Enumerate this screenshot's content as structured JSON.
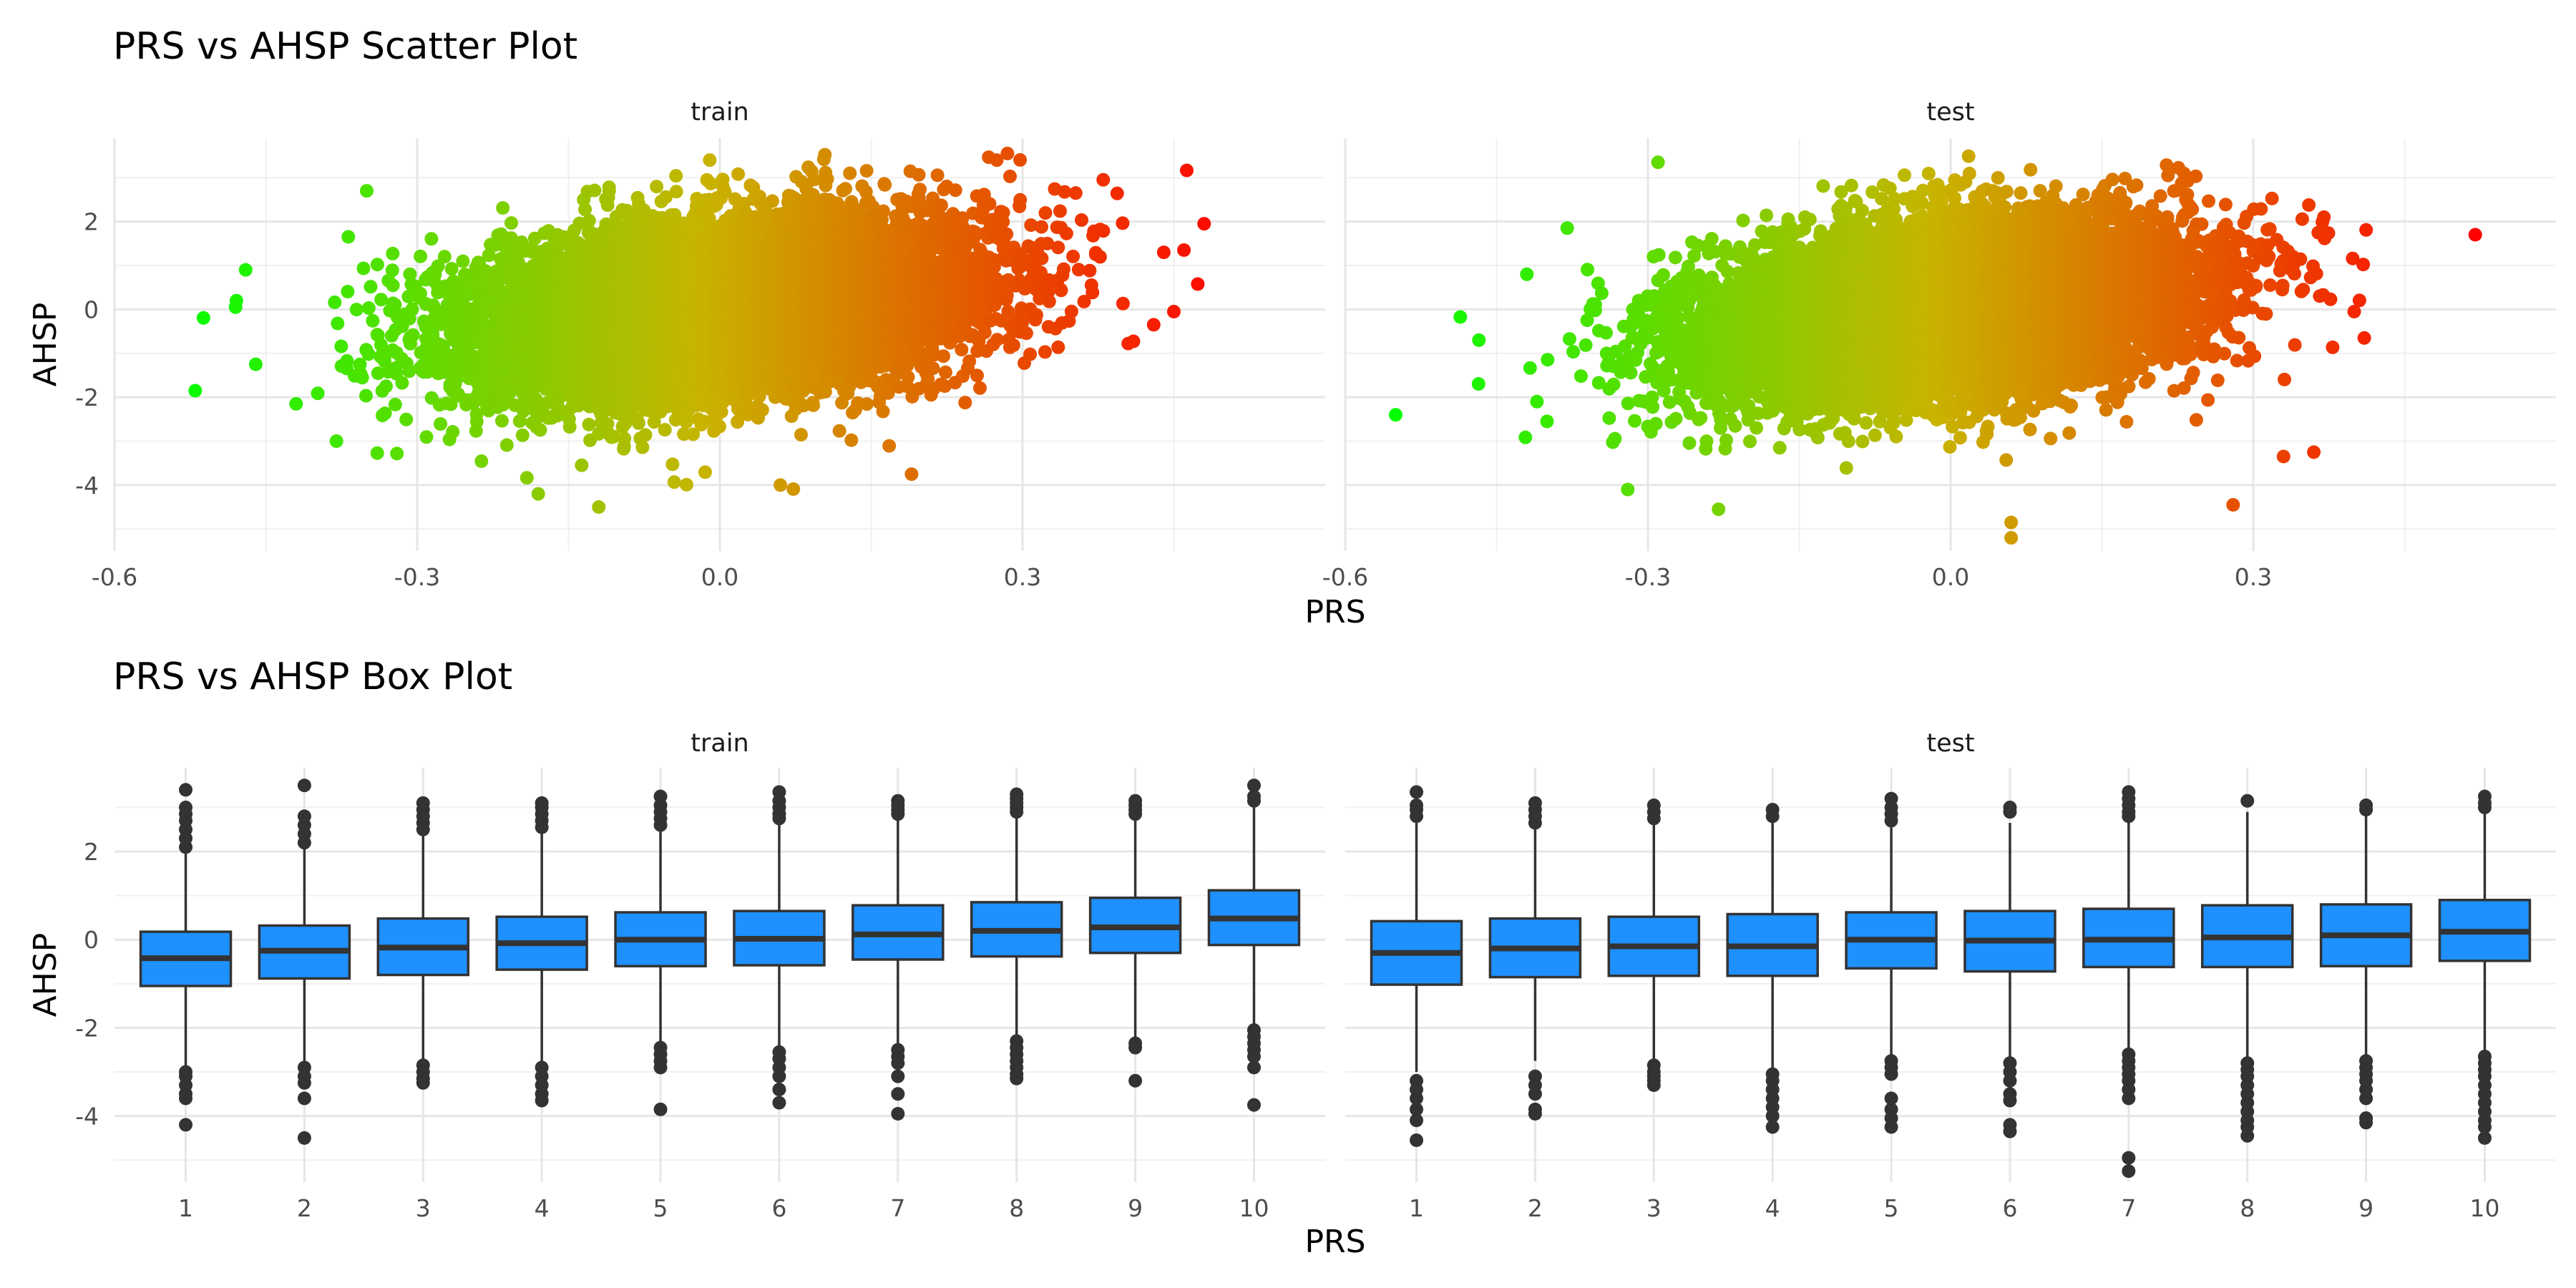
{
  "chart_data": [
    {
      "type": "scatter",
      "title": "PRS vs AHSP Scatter Plot",
      "xlabel": "PRS",
      "ylabel": "AHSP",
      "xlim": [
        -0.6,
        0.6
      ],
      "ylim": [
        -5.5,
        3.9
      ],
      "xticks": [
        -0.6,
        -0.3,
        0.0,
        0.3
      ],
      "xtick_labels": [
        "-0.6",
        "-0.3",
        "0.0",
        "0.3"
      ],
      "yticks": [
        -4,
        -2,
        0,
        2
      ],
      "ytick_labels": [
        "-4",
        "-2",
        "0",
        "2"
      ],
      "grid": true,
      "color_scale": {
        "low": "#00ff00",
        "mid": "#c8b400",
        "high": "#ff0000"
      },
      "panels": [
        {
          "name": "train",
          "approx_distribution": {
            "x_mean": 0.0,
            "x_sd": 0.12,
            "y_mean": 0.0,
            "y_sd": 1.0,
            "correlation": 0.3
          },
          "extreme_points": [
            {
              "x": -0.52,
              "y": -1.85
            },
            {
              "x": -0.47,
              "y": 0.9
            },
            {
              "x": -0.48,
              "y": 0.05
            },
            {
              "x": -0.46,
              "y": -1.25
            },
            {
              "x": -0.42,
              "y": -2.15
            },
            {
              "x": -0.38,
              "y": -3.0
            },
            {
              "x": -0.35,
              "y": 2.7
            },
            {
              "x": -0.18,
              "y": -4.2
            },
            {
              "x": -0.12,
              "y": -4.5
            },
            {
              "x": -0.01,
              "y": 3.4
            },
            {
              "x": 0.06,
              "y": -4.0
            },
            {
              "x": 0.19,
              "y": -3.75
            },
            {
              "x": 0.285,
              "y": 3.55
            },
            {
              "x": 0.38,
              "y": 2.95
            },
            {
              "x": 0.44,
              "y": 1.3
            },
            {
              "x": 0.46,
              "y": 1.35
            },
            {
              "x": 0.48,
              "y": 1.95
            },
            {
              "x": 0.45,
              "y": -0.05
            },
            {
              "x": 0.43,
              "y": -0.35
            }
          ]
        },
        {
          "name": "test",
          "approx_distribution": {
            "x_mean": 0.0,
            "x_sd": 0.12,
            "y_mean": 0.0,
            "y_sd": 1.0,
            "correlation": 0.3
          },
          "extreme_points": [
            {
              "x": -0.55,
              "y": -2.4
            },
            {
              "x": -0.42,
              "y": 0.8
            },
            {
              "x": -0.41,
              "y": -2.1
            },
            {
              "x": -0.4,
              "y": -2.55
            },
            {
              "x": -0.38,
              "y": 1.85
            },
            {
              "x": -0.32,
              "y": -4.1
            },
            {
              "x": -0.29,
              "y": 3.35
            },
            {
              "x": -0.23,
              "y": -4.55
            },
            {
              "x": 0.06,
              "y": -5.2
            },
            {
              "x": 0.06,
              "y": -4.85
            },
            {
              "x": 0.28,
              "y": -4.45
            },
            {
              "x": 0.33,
              "y": -3.35
            },
            {
              "x": 0.37,
              "y": 2.1
            },
            {
              "x": 0.4,
              "y": -0.05
            },
            {
              "x": 0.41,
              "y": -0.65
            },
            {
              "x": 0.36,
              "y": -3.25
            },
            {
              "x": 0.52,
              "y": 1.7
            }
          ]
        }
      ]
    },
    {
      "type": "box",
      "title": "PRS vs AHSP Box Plot",
      "xlabel": "PRS",
      "ylabel": "AHSP",
      "ylim": [
        -5.5,
        3.9
      ],
      "categories": [
        "1",
        "2",
        "3",
        "4",
        "5",
        "6",
        "7",
        "8",
        "9",
        "10"
      ],
      "yticks": [
        -4,
        -2,
        0,
        2
      ],
      "ytick_labels": [
        "-4",
        "-2",
        "0",
        "2"
      ],
      "box_color": "#1e90ff",
      "outlier_color": "#333333",
      "grid": true,
      "panels": [
        {
          "name": "train",
          "boxes": [
            {
              "q1": -1.05,
              "median": -0.42,
              "q3": 0.18,
              "whisker_low": -2.9,
              "whisker_high": 1.95,
              "outliers_high": [
                2.1,
                2.3,
                2.5,
                2.7,
                2.85,
                3.0,
                3.4
              ],
              "outliers_low": [
                -3.0,
                -3.1,
                -3.3,
                -3.5,
                -3.6,
                -4.2
              ]
            },
            {
              "q1": -0.88,
              "median": -0.25,
              "q3": 0.32,
              "whisker_low": -2.75,
              "whisker_high": 2.1,
              "outliers_high": [
                2.2,
                2.4,
                2.6,
                2.8,
                3.5
              ],
              "outliers_low": [
                -2.9,
                -3.1,
                -3.25,
                -3.6,
                -4.5
              ]
            },
            {
              "q1": -0.8,
              "median": -0.18,
              "q3": 0.48,
              "whisker_low": -2.75,
              "whisker_high": 2.4,
              "outliers_high": [
                2.5,
                2.65,
                2.8,
                2.95,
                3.1
              ],
              "outliers_low": [
                -2.85,
                -3.0,
                -3.15,
                -3.25
              ]
            },
            {
              "q1": -0.68,
              "median": -0.08,
              "q3": 0.52,
              "whisker_low": -2.75,
              "whisker_high": 2.45,
              "outliers_high": [
                2.55,
                2.7,
                2.85,
                3.0,
                3.1
              ],
              "outliers_low": [
                -2.9,
                -3.1,
                -3.3,
                -3.5,
                -3.65
              ]
            },
            {
              "q1": -0.6,
              "median": 0.0,
              "q3": 0.62,
              "whisker_low": -2.35,
              "whisker_high": 2.5,
              "outliers_high": [
                2.6,
                2.75,
                2.9,
                3.05,
                3.25
              ],
              "outliers_low": [
                -2.45,
                -2.6,
                -2.75,
                -2.9,
                -3.85
              ]
            },
            {
              "q1": -0.58,
              "median": 0.02,
              "q3": 0.65,
              "whisker_low": -2.45,
              "whisker_high": 2.7,
              "outliers_high": [
                2.75,
                2.85,
                3.0,
                3.15,
                3.35
              ],
              "outliers_low": [
                -2.55,
                -2.7,
                -2.9,
                -3.1,
                -3.4,
                -3.7
              ]
            },
            {
              "q1": -0.45,
              "median": 0.12,
              "q3": 0.78,
              "whisker_low": -2.4,
              "whisker_high": 2.8,
              "outliers_high": [
                2.85,
                2.95,
                3.05,
                3.15
              ],
              "outliers_low": [
                -2.5,
                -2.65,
                -2.8,
                -3.1,
                -3.5,
                -3.95
              ]
            },
            {
              "q1": -0.38,
              "median": 0.2,
              "q3": 0.85,
              "whisker_low": -2.2,
              "whisker_high": 2.85,
              "outliers_high": [
                2.9,
                3.0,
                3.1,
                3.2,
                3.3
              ],
              "outliers_low": [
                -2.3,
                -2.45,
                -2.6,
                -2.75,
                -2.9,
                -3.05,
                -3.15
              ]
            },
            {
              "q1": -0.3,
              "median": 0.28,
              "q3": 0.95,
              "whisker_low": -2.25,
              "whisker_high": 2.8,
              "outliers_high": [
                2.85,
                2.95,
                3.05,
                3.15
              ],
              "outliers_low": [
                -2.35,
                -2.45,
                -3.2
              ]
            },
            {
              "q1": -0.12,
              "median": 0.48,
              "q3": 1.12,
              "whisker_low": -1.95,
              "whisker_high": 3.05,
              "outliers_high": [
                3.15,
                3.25,
                3.5
              ],
              "outliers_low": [
                -2.05,
                -2.2,
                -2.35,
                -2.5,
                -2.65,
                -2.9,
                -3.75
              ]
            }
          ]
        },
        {
          "name": "test",
          "boxes": [
            {
              "q1": -1.02,
              "median": -0.3,
              "q3": 0.42,
              "whisker_low": -3.0,
              "whisker_high": 2.65,
              "outliers_high": [
                2.8,
                2.95,
                3.05,
                3.35
              ],
              "outliers_low": [
                -3.2,
                -3.4,
                -3.6,
                -3.85,
                -4.1,
                -4.55
              ]
            },
            {
              "q1": -0.85,
              "median": -0.2,
              "q3": 0.48,
              "whisker_low": -2.75,
              "whisker_high": 2.55,
              "outliers_high": [
                2.65,
                2.8,
                2.95,
                3.1
              ],
              "outliers_low": [
                -3.1,
                -3.3,
                -3.5,
                -3.85,
                -3.95
              ]
            },
            {
              "q1": -0.82,
              "median": -0.15,
              "q3": 0.52,
              "whisker_low": -2.7,
              "whisker_high": 2.6,
              "outliers_high": [
                2.75,
                2.9,
                3.05
              ],
              "outliers_low": [
                -2.85,
                -3.0,
                -3.1,
                -3.2,
                -3.3
              ]
            },
            {
              "q1": -0.82,
              "median": -0.15,
              "q3": 0.58,
              "whisker_low": -2.9,
              "whisker_high": 2.7,
              "outliers_high": [
                2.8,
                2.95
              ],
              "outliers_low": [
                -3.05,
                -3.2,
                -3.4,
                -3.6,
                -3.8,
                -4.0,
                -4.25
              ]
            },
            {
              "q1": -0.65,
              "median": 0.0,
              "q3": 0.62,
              "whisker_low": -2.65,
              "whisker_high": 2.55,
              "outliers_high": [
                2.7,
                2.85,
                3.0,
                3.2
              ],
              "outliers_low": [
                -2.75,
                -2.9,
                -3.05,
                -3.6,
                -3.85,
                -4.05,
                -4.25
              ]
            },
            {
              "q1": -0.72,
              "median": -0.02,
              "q3": 0.65,
              "whisker_low": -2.7,
              "whisker_high": 2.65,
              "outliers_high": [
                2.9,
                3.0
              ],
              "outliers_low": [
                -2.8,
                -3.0,
                -3.2,
                -3.5,
                -3.65,
                -4.2,
                -4.35
              ]
            },
            {
              "q1": -0.62,
              "median": 0.0,
              "q3": 0.7,
              "whisker_low": -2.5,
              "whisker_high": 2.7,
              "outliers_high": [
                2.8,
                2.9,
                3.05,
                3.2,
                3.35
              ],
              "outliers_low": [
                -2.6,
                -2.75,
                -2.9,
                -3.05,
                -3.2,
                -3.4,
                -3.6,
                -4.95,
                -5.25
              ]
            },
            {
              "q1": -0.62,
              "median": 0.05,
              "q3": 0.78,
              "whisker_low": -2.7,
              "whisker_high": 2.9,
              "outliers_high": [
                3.15
              ],
              "outliers_low": [
                -2.8,
                -2.95,
                -3.1,
                -3.3,
                -3.5,
                -3.7,
                -3.9,
                -4.1,
                -4.25,
                -4.45
              ]
            },
            {
              "q1": -0.6,
              "median": 0.1,
              "q3": 0.8,
              "whisker_low": -2.65,
              "whisker_high": 2.85,
              "outliers_high": [
                2.95,
                3.05
              ],
              "outliers_low": [
                -2.75,
                -2.9,
                -3.05,
                -3.2,
                -3.4,
                -3.6,
                -4.05,
                -4.15
              ]
            },
            {
              "q1": -0.48,
              "median": 0.18,
              "q3": 0.9,
              "whisker_low": -2.55,
              "whisker_high": 2.9,
              "outliers_high": [
                3.0,
                3.1,
                3.25
              ],
              "outliers_low": [
                -2.65,
                -2.8,
                -2.95,
                -3.1,
                -3.3,
                -3.5,
                -3.7,
                -3.9,
                -4.1,
                -4.25,
                -4.5
              ]
            }
          ]
        }
      ]
    }
  ]
}
